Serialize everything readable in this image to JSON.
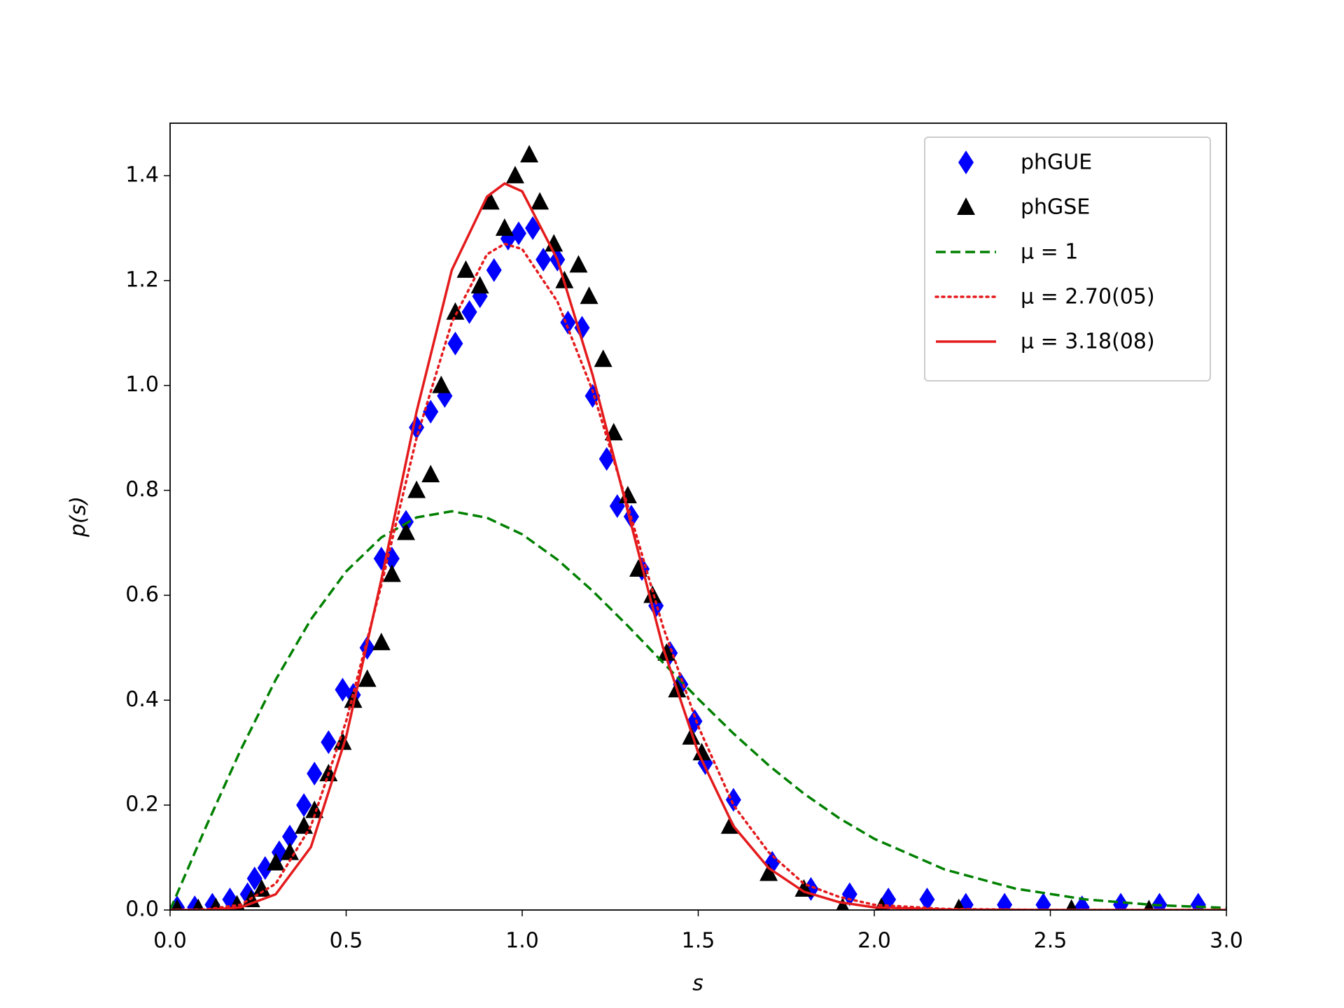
{
  "chart_data": {
    "type": "scatter",
    "xlabel": "s",
    "ylabel": "p(s)",
    "xlim": [
      0,
      3
    ],
    "ylim": [
      0,
      1.5
    ],
    "xticks": [
      {
        "value": 0,
        "label": "0.0"
      },
      0.5,
      {
        "value": 1,
        "label": "1.0"
      },
      1.5,
      {
        "value": 2,
        "label": "2.0"
      },
      2.5,
      {
        "value": 3,
        "label": "3.0"
      }
    ],
    "yticks": [
      {
        "value": 0,
        "label": "0.0"
      },
      0.2,
      0.4,
      0.6,
      0.8,
      {
        "value": 1,
        "label": "1.0"
      },
      1.2,
      1.4
    ],
    "legend": "upper right",
    "series": [
      {
        "name": "phGUE",
        "color": "#0000ff",
        "marker": "d",
        "x": [
          0.02,
          0.07,
          0.12,
          0.17,
          0.22,
          0.24,
          0.27,
          0.31,
          0.34,
          0.38,
          0.41,
          0.45,
          0.49,
          0.52,
          0.56,
          0.6,
          0.63,
          0.67,
          0.7,
          0.74,
          0.78,
          0.81,
          0.85,
          0.88,
          0.92,
          0.96,
          0.99,
          1.03,
          1.06,
          1.1,
          1.13,
          1.17,
          1.2,
          1.24,
          1.27,
          1.31,
          1.34,
          1.38,
          1.42,
          1.45,
          1.49,
          1.52,
          1.6,
          1.71,
          1.82,
          1.93,
          2.04,
          2.15,
          2.26,
          2.37,
          2.48,
          2.59,
          2.7,
          2.81,
          2.92
        ],
        "values": [
          0.005,
          0.005,
          0.01,
          0.02,
          0.03,
          0.06,
          0.08,
          0.11,
          0.14,
          0.2,
          0.26,
          0.32,
          0.42,
          0.41,
          0.5,
          0.67,
          0.67,
          0.74,
          0.92,
          0.95,
          0.98,
          1.08,
          1.14,
          1.17,
          1.22,
          1.28,
          1.29,
          1.3,
          1.24,
          1.24,
          1.12,
          1.11,
          0.98,
          0.86,
          0.77,
          0.75,
          0.65,
          0.58,
          0.49,
          0.43,
          0.36,
          0.28,
          0.21,
          0.09,
          0.04,
          0.03,
          0.02,
          0.02,
          0.01,
          0.01,
          0.01,
          0.005,
          0.01,
          0.01,
          0.01
        ]
      },
      {
        "name": "phGSE",
        "color": "#000000",
        "marker": "^",
        "x": [
          0.02,
          0.08,
          0.13,
          0.19,
          0.23,
          0.26,
          0.3,
          0.34,
          0.38,
          0.41,
          0.45,
          0.49,
          0.52,
          0.56,
          0.6,
          0.63,
          0.67,
          0.7,
          0.74,
          0.77,
          0.81,
          0.84,
          0.88,
          0.91,
          0.95,
          0.98,
          1.02,
          1.05,
          1.09,
          1.12,
          1.16,
          1.19,
          1.23,
          1.26,
          1.3,
          1.33,
          1.37,
          1.41,
          1.44,
          1.48,
          1.51,
          1.59,
          1.7,
          1.8,
          1.91,
          2.02,
          2.24,
          2.56,
          2.78
        ],
        "values": [
          0.002,
          0.003,
          0.005,
          0.01,
          0.02,
          0.04,
          0.09,
          0.11,
          0.16,
          0.19,
          0.26,
          0.32,
          0.4,
          0.44,
          0.51,
          0.64,
          0.72,
          0.8,
          0.83,
          1.0,
          1.14,
          1.22,
          1.19,
          1.35,
          1.3,
          1.4,
          1.44,
          1.35,
          1.27,
          1.2,
          1.23,
          1.17,
          1.05,
          0.91,
          0.79,
          0.65,
          0.6,
          0.49,
          0.42,
          0.33,
          0.3,
          0.16,
          0.07,
          0.04,
          0.005,
          0.005,
          0.003,
          0.002,
          0.001
        ]
      },
      {
        "name": "μ = 1",
        "color": "#008000",
        "linestyle": "dashed",
        "x": [
          0,
          0.1,
          0.2,
          0.3,
          0.4,
          0.5,
          0.6,
          0.7,
          0.8,
          0.9,
          1.0,
          1.1,
          1.2,
          1.3,
          1.4,
          1.5,
          1.6,
          1.7,
          1.8,
          1.9,
          2.0,
          2.2,
          2.4,
          2.6,
          2.8,
          3.0
        ],
        "values": [
          0,
          0.1558,
          0.3045,
          0.4391,
          0.5541,
          0.6455,
          0.7103,
          0.7484,
          0.7602,
          0.7478,
          0.7162,
          0.668,
          0.6083,
          0.5416,
          0.4717,
          0.4024,
          0.3365,
          0.2759,
          0.2219,
          0.1752,
          0.1357,
          0.0772,
          0.0409,
          0.0202,
          0.0093,
          0.004
        ]
      },
      {
        "name": "μ = 2.70(05)",
        "color": "#e41a1c",
        "linestyle": "dotted",
        "x": [
          0,
          0.1,
          0.2,
          0.3,
          0.4,
          0.5,
          0.6,
          0.7,
          0.8,
          0.9,
          0.95,
          1.0,
          1.1,
          1.2,
          1.3,
          1.4,
          1.5,
          1.6,
          1.7,
          1.8,
          1.9,
          2.0,
          2.2,
          2.5,
          3.0
        ],
        "values": [
          0,
          0.001,
          0.01,
          0.05,
          0.16,
          0.36,
          0.62,
          0.9,
          1.12,
          1.25,
          1.27,
          1.26,
          1.16,
          0.99,
          0.77,
          0.54,
          0.35,
          0.2,
          0.11,
          0.05,
          0.025,
          0.01,
          0.002,
          0,
          0
        ]
      },
      {
        "name": "μ = 3.18(08)",
        "color": "#e41a1c",
        "linestyle": "solid",
        "x": [
          0,
          0.1,
          0.2,
          0.3,
          0.4,
          0.5,
          0.6,
          0.7,
          0.8,
          0.9,
          0.95,
          1.0,
          1.1,
          1.2,
          1.3,
          1.4,
          1.5,
          1.6,
          1.7,
          1.8,
          1.9,
          2.0,
          2.2,
          2.5,
          3.0
        ],
        "values": [
          0,
          0,
          0.005,
          0.03,
          0.12,
          0.33,
          0.63,
          0.95,
          1.22,
          1.36,
          1.385,
          1.37,
          1.24,
          1.02,
          0.76,
          0.5,
          0.3,
          0.16,
          0.08,
          0.035,
          0.015,
          0.005,
          0.001,
          0,
          0
        ]
      }
    ]
  }
}
